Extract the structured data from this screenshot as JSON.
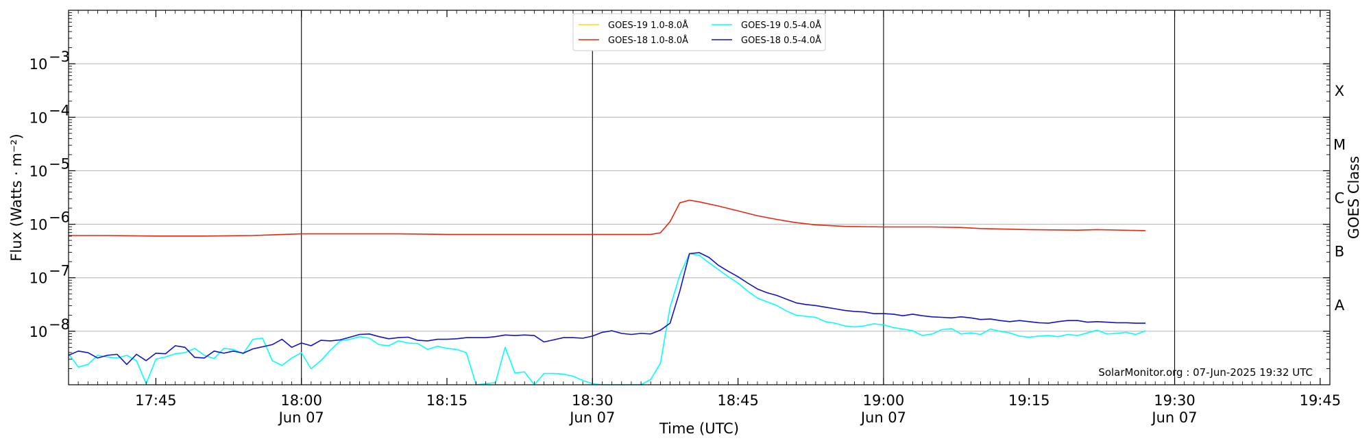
{
  "chart_data": {
    "type": "line",
    "xlabel": "Time (UTC)",
    "ylabel": "Flux (Watts · m⁻²)",
    "right_label": "GOES Class",
    "credit": "SolarMonitor.org : 07-Jun-2025 19:32 UTC",
    "y_scale": "log",
    "xlim": [
      "17:36",
      "19:46"
    ],
    "ylim": [
      1e-09,
      0.01
    ],
    "x_ticks": [
      {
        "t": "17:45",
        "label": "17:45",
        "sub": ""
      },
      {
        "t": "18:00",
        "label": "18:00",
        "sub": "Jun 07"
      },
      {
        "t": "18:15",
        "label": "18:15",
        "sub": ""
      },
      {
        "t": "18:30",
        "label": "18:30",
        "sub": "Jun 07"
      },
      {
        "t": "18:45",
        "label": "18:45",
        "sub": ""
      },
      {
        "t": "19:00",
        "label": "19:00",
        "sub": "Jun 07"
      },
      {
        "t": "19:15",
        "label": "19:15",
        "sub": ""
      },
      {
        "t": "19:30",
        "label": "19:30",
        "sub": "Jun 07"
      },
      {
        "t": "19:45",
        "label": "19:45",
        "sub": ""
      }
    ],
    "y_ticks": [
      {
        "exp": -3,
        "label": "10",
        "sup": "−3"
      },
      {
        "exp": -4,
        "label": "10",
        "sup": "−4"
      },
      {
        "exp": -5,
        "label": "10",
        "sup": "−5"
      },
      {
        "exp": -6,
        "label": "10",
        "sup": "−6"
      },
      {
        "exp": -7,
        "label": "10",
        "sup": "−7"
      },
      {
        "exp": -8,
        "label": "10",
        "sup": "−8"
      }
    ],
    "goes_classes": [
      {
        "label": "X",
        "exp": -3.5
      },
      {
        "label": "M",
        "exp": -4.5
      },
      {
        "label": "C",
        "exp": -5.5
      },
      {
        "label": "B",
        "exp": -6.5
      },
      {
        "label": "A",
        "exp": -7.5
      }
    ],
    "vlines": [
      "18:00",
      "18:30",
      "19:00",
      "19:30"
    ],
    "grid": true,
    "legend_position": "top-center",
    "series": [
      {
        "name": "GOES-19 1.0-8.0Å",
        "color": "#ffd700",
        "points": []
      },
      {
        "name": "GOES-18 1.0-8.0Å",
        "color": "#e8260f",
        "points": [
          [
            "17:36",
            -6.21
          ],
          [
            "17:40",
            -6.21
          ],
          [
            "17:45",
            -6.22
          ],
          [
            "17:50",
            -6.22
          ],
          [
            "17:55",
            -6.21
          ],
          [
            "18:00",
            -6.18
          ],
          [
            "18:05",
            -6.18
          ],
          [
            "18:10",
            -6.18
          ],
          [
            "18:15",
            -6.19
          ],
          [
            "18:20",
            -6.19
          ],
          [
            "18:25",
            -6.19
          ],
          [
            "18:30",
            -6.19
          ],
          [
            "18:34",
            -6.19
          ],
          [
            "18:36",
            -6.19
          ],
          [
            "18:37",
            -6.16
          ],
          [
            "18:38",
            -5.95
          ],
          [
            "18:39",
            -5.6
          ],
          [
            "18:40",
            -5.55
          ],
          [
            "18:41",
            -5.58
          ],
          [
            "18:43",
            -5.66
          ],
          [
            "18:45",
            -5.75
          ],
          [
            "18:47",
            -5.84
          ],
          [
            "18:49",
            -5.91
          ],
          [
            "18:51",
            -5.97
          ],
          [
            "18:53",
            -6.01
          ],
          [
            "18:56",
            -6.04
          ],
          [
            "19:00",
            -6.05
          ],
          [
            "19:05",
            -6.05
          ],
          [
            "19:08",
            -6.06
          ],
          [
            "19:10",
            -6.08
          ],
          [
            "19:15",
            -6.1
          ],
          [
            "19:20",
            -6.11
          ],
          [
            "19:22",
            -6.1
          ],
          [
            "19:27",
            -6.12
          ]
        ]
      },
      {
        "name": "GOES-19 0.5-4.0Å",
        "color": "#00ffff",
        "points": [
          [
            "17:36",
            -8.42
          ],
          [
            "17:37",
            -8.67
          ],
          [
            "17:38",
            -8.62
          ],
          [
            "17:39",
            -8.45
          ],
          [
            "17:40",
            -8.48
          ],
          [
            "17:41",
            -8.5
          ],
          [
            "17:42",
            -8.45
          ],
          [
            "17:43",
            -8.55
          ],
          [
            "17:44",
            -8.98
          ],
          [
            "17:45",
            -8.52
          ],
          [
            "17:46",
            -8.48
          ],
          [
            "17:47",
            -8.42
          ],
          [
            "17:48",
            -8.4
          ],
          [
            "17:49",
            -8.32
          ],
          [
            "17:50",
            -8.45
          ],
          [
            "17:51",
            -8.51
          ],
          [
            "17:52",
            -8.32
          ],
          [
            "17:53",
            -8.34
          ],
          [
            "17:54",
            -8.42
          ],
          [
            "17:55",
            -8.15
          ],
          [
            "17:56",
            -8.13
          ],
          [
            "17:57",
            -8.55
          ],
          [
            "17:58",
            -8.64
          ],
          [
            "17:59",
            -8.5
          ],
          [
            "18:00",
            -8.4
          ],
          [
            "18:01",
            -8.7
          ],
          [
            "18:02",
            -8.55
          ],
          [
            "18:03",
            -8.35
          ],
          [
            "18:04",
            -8.18
          ],
          [
            "18:05",
            -8.15
          ],
          [
            "18:06",
            -8.1
          ],
          [
            "18:07",
            -8.13
          ],
          [
            "18:08",
            -8.25
          ],
          [
            "18:09",
            -8.27
          ],
          [
            "18:10",
            -8.18
          ],
          [
            "18:11",
            -8.22
          ],
          [
            "18:12",
            -8.23
          ],
          [
            "18:13",
            -8.34
          ],
          [
            "18:14",
            -8.28
          ],
          [
            "18:15",
            -8.32
          ],
          [
            "18:16",
            -8.34
          ],
          [
            "18:17",
            -8.4
          ],
          [
            "18:18",
            -9.0
          ],
          [
            "18:19",
            -8.98
          ],
          [
            "18:20",
            -8.96
          ],
          [
            "18:21",
            -8.3
          ],
          [
            "18:22",
            -8.78
          ],
          [
            "18:23",
            -8.76
          ],
          [
            "18:24",
            -9.0
          ],
          [
            "18:25",
            -8.79
          ],
          [
            "18:26",
            -8.79
          ],
          [
            "18:27",
            -8.8
          ],
          [
            "18:28",
            -8.84
          ],
          [
            "18:29",
            -8.92
          ],
          [
            "18:30",
            -8.98
          ],
          [
            "18:31",
            -9.0
          ],
          [
            "18:35",
            -9.0
          ],
          [
            "18:36",
            -8.9
          ],
          [
            "18:37",
            -8.6
          ],
          [
            "18:38",
            -7.55
          ],
          [
            "18:39",
            -6.95
          ],
          [
            "18:40",
            -6.55
          ],
          [
            "18:41",
            -6.58
          ],
          [
            "18:42",
            -6.72
          ],
          [
            "18:43",
            -6.85
          ],
          [
            "18:44",
            -6.98
          ],
          [
            "18:45",
            -7.1
          ],
          [
            "18:46",
            -7.25
          ],
          [
            "18:47",
            -7.38
          ],
          [
            "18:48",
            -7.45
          ],
          [
            "18:49",
            -7.52
          ],
          [
            "18:50",
            -7.62
          ],
          [
            "18:51",
            -7.7
          ],
          [
            "18:52",
            -7.72
          ],
          [
            "18:53",
            -7.74
          ],
          [
            "18:54",
            -7.82
          ],
          [
            "18:55",
            -7.85
          ],
          [
            "18:56",
            -7.9
          ],
          [
            "18:57",
            -7.92
          ],
          [
            "18:58",
            -7.9
          ],
          [
            "18:59",
            -7.86
          ],
          [
            "19:00",
            -7.88
          ],
          [
            "19:01",
            -7.93
          ],
          [
            "19:02",
            -7.96
          ],
          [
            "19:03",
            -7.99
          ],
          [
            "19:04",
            -8.08
          ],
          [
            "19:05",
            -8.05
          ],
          [
            "19:06",
            -7.97
          ],
          [
            "19:07",
            -7.95
          ],
          [
            "19:08",
            -8.05
          ],
          [
            "19:09",
            -8.03
          ],
          [
            "19:10",
            -8.06
          ],
          [
            "19:11",
            -7.96
          ],
          [
            "19:12",
            -8.0
          ],
          [
            "19:13",
            -8.03
          ],
          [
            "19:14",
            -8.09
          ],
          [
            "19:15",
            -8.11
          ],
          [
            "19:16",
            -8.09
          ],
          [
            "19:17",
            -8.08
          ],
          [
            "19:18",
            -8.1
          ],
          [
            "19:19",
            -8.06
          ],
          [
            "19:20",
            -8.08
          ],
          [
            "19:21",
            -8.03
          ],
          [
            "19:22",
            -7.98
          ],
          [
            "19:23",
            -8.05
          ],
          [
            "19:24",
            -8.04
          ],
          [
            "19:25",
            -8.02
          ],
          [
            "19:26",
            -8.06
          ],
          [
            "19:27",
            -7.99
          ]
        ]
      },
      {
        "name": "GOES-18 0.5-4.0Å",
        "color": "#0f12c9",
        "points": [
          [
            "17:36",
            -8.45
          ],
          [
            "17:37",
            -8.37
          ],
          [
            "17:38",
            -8.4
          ],
          [
            "17:39",
            -8.5
          ],
          [
            "17:40",
            -8.45
          ],
          [
            "17:41",
            -8.43
          ],
          [
            "17:42",
            -8.62
          ],
          [
            "17:43",
            -8.43
          ],
          [
            "17:44",
            -8.55
          ],
          [
            "17:45",
            -8.41
          ],
          [
            "17:46",
            -8.42
          ],
          [
            "17:47",
            -8.27
          ],
          [
            "17:48",
            -8.3
          ],
          [
            "17:49",
            -8.49
          ],
          [
            "17:50",
            -8.5
          ],
          [
            "17:51",
            -8.37
          ],
          [
            "17:52",
            -8.41
          ],
          [
            "17:53",
            -8.37
          ],
          [
            "17:54",
            -8.41
          ],
          [
            "17:55",
            -8.33
          ],
          [
            "17:56",
            -8.29
          ],
          [
            "17:57",
            -8.25
          ],
          [
            "17:58",
            -8.15
          ],
          [
            "17:59",
            -8.3
          ],
          [
            "18:00",
            -8.22
          ],
          [
            "18:01",
            -8.27
          ],
          [
            "18:02",
            -8.17
          ],
          [
            "18:03",
            -8.18
          ],
          [
            "18:04",
            -8.16
          ],
          [
            "18:05",
            -8.11
          ],
          [
            "18:06",
            -8.06
          ],
          [
            "18:07",
            -8.05
          ],
          [
            "18:08",
            -8.1
          ],
          [
            "18:09",
            -8.14
          ],
          [
            "18:10",
            -8.12
          ],
          [
            "18:11",
            -8.11
          ],
          [
            "18:12",
            -8.17
          ],
          [
            "18:13",
            -8.18
          ],
          [
            "18:14",
            -8.15
          ],
          [
            "18:15",
            -8.15
          ],
          [
            "18:16",
            -8.14
          ],
          [
            "18:17",
            -8.12
          ],
          [
            "18:18",
            -8.12
          ],
          [
            "18:19",
            -8.12
          ],
          [
            "18:20",
            -8.1
          ],
          [
            "18:21",
            -8.07
          ],
          [
            "18:22",
            -8.08
          ],
          [
            "18:23",
            -8.07
          ],
          [
            "18:24",
            -8.08
          ],
          [
            "18:25",
            -8.2
          ],
          [
            "18:26",
            -8.16
          ],
          [
            "18:27",
            -8.12
          ],
          [
            "18:28",
            -8.12
          ],
          [
            "18:29",
            -8.13
          ],
          [
            "18:30",
            -8.09
          ],
          [
            "18:31",
            -8.02
          ],
          [
            "18:32",
            -7.99
          ],
          [
            "18:33",
            -8.04
          ],
          [
            "18:34",
            -8.06
          ],
          [
            "18:35",
            -8.04
          ],
          [
            "18:36",
            -8.05
          ],
          [
            "18:37",
            -7.98
          ],
          [
            "18:38",
            -7.85
          ],
          [
            "18:39",
            -7.25
          ],
          [
            "18:40",
            -6.55
          ],
          [
            "18:41",
            -6.53
          ],
          [
            "18:42",
            -6.62
          ],
          [
            "18:43",
            -6.77
          ],
          [
            "18:44",
            -6.88
          ],
          [
            "18:45",
            -6.98
          ],
          [
            "18:46",
            -7.1
          ],
          [
            "18:47",
            -7.21
          ],
          [
            "18:48",
            -7.28
          ],
          [
            "18:49",
            -7.33
          ],
          [
            "18:50",
            -7.4
          ],
          [
            "18:51",
            -7.47
          ],
          [
            "18:52",
            -7.5
          ],
          [
            "18:53",
            -7.52
          ],
          [
            "18:54",
            -7.55
          ],
          [
            "18:55",
            -7.58
          ],
          [
            "18:56",
            -7.61
          ],
          [
            "18:57",
            -7.63
          ],
          [
            "18:58",
            -7.64
          ],
          [
            "18:59",
            -7.67
          ],
          [
            "19:00",
            -7.67
          ],
          [
            "19:01",
            -7.68
          ],
          [
            "19:02",
            -7.71
          ],
          [
            "19:03",
            -7.68
          ],
          [
            "19:04",
            -7.71
          ],
          [
            "19:05",
            -7.73
          ],
          [
            "19:06",
            -7.74
          ],
          [
            "19:07",
            -7.75
          ],
          [
            "19:08",
            -7.73
          ],
          [
            "19:09",
            -7.75
          ],
          [
            "19:10",
            -7.78
          ],
          [
            "19:11",
            -7.77
          ],
          [
            "19:12",
            -7.8
          ],
          [
            "19:13",
            -7.82
          ],
          [
            "19:14",
            -7.8
          ],
          [
            "19:15",
            -7.82
          ],
          [
            "19:16",
            -7.84
          ],
          [
            "19:17",
            -7.85
          ],
          [
            "19:18",
            -7.82
          ],
          [
            "19:19",
            -7.8
          ],
          [
            "19:20",
            -7.8
          ],
          [
            "19:21",
            -7.83
          ],
          [
            "19:22",
            -7.82
          ],
          [
            "19:23",
            -7.83
          ],
          [
            "19:24",
            -7.84
          ],
          [
            "19:25",
            -7.84
          ],
          [
            "19:26",
            -7.85
          ],
          [
            "19:27",
            -7.85
          ]
        ]
      }
    ]
  }
}
